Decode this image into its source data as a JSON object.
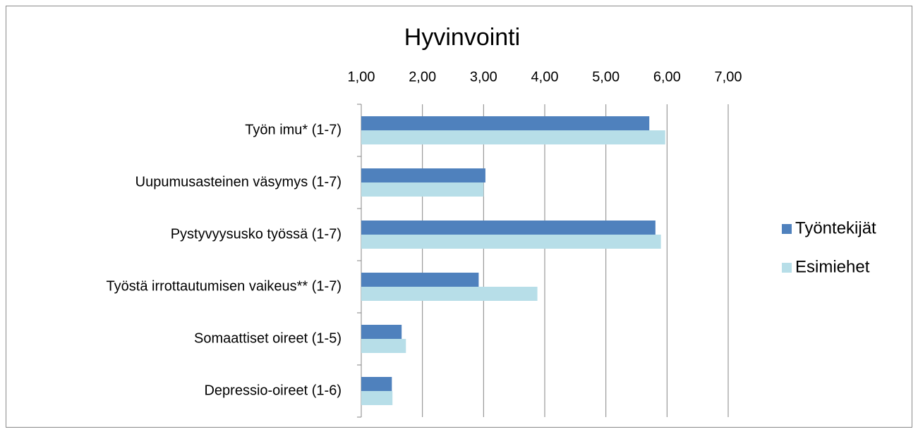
{
  "chart_data": {
    "type": "barh",
    "title": "Hyvinvointi",
    "categories": [
      "Työn imu* (1-7)",
      "Uupumusasteinen väsymys (1-7)",
      "Pystyvyysusko työssä (1-7)",
      "Työstä irrottautumisen vaikeus** (1-7)",
      "Somaattiset oireet (1-5)",
      "Depressio-oireet (1-6)"
    ],
    "series": [
      {
        "name": "Työntekijät",
        "color": "#4f81bd",
        "values": [
          5.71,
          3.03,
          5.81,
          2.92,
          1.66,
          1.5
        ]
      },
      {
        "name": "Esimiehet",
        "color": "#b7dee8",
        "values": [
          5.97,
          3.0,
          5.9,
          3.88,
          1.73,
          1.51
        ]
      }
    ],
    "xlim": [
      1,
      7
    ],
    "xticks": [
      {
        "value": 1,
        "label": "1,00"
      },
      {
        "value": 2,
        "label": "2,00"
      },
      {
        "value": 3,
        "label": "3,00"
      },
      {
        "value": 4,
        "label": "4,00"
      },
      {
        "value": 5,
        "label": "5,00"
      },
      {
        "value": 6,
        "label": "6,00"
      },
      {
        "value": 7,
        "label": "7,00"
      }
    ],
    "grid": true,
    "legend": "right"
  }
}
